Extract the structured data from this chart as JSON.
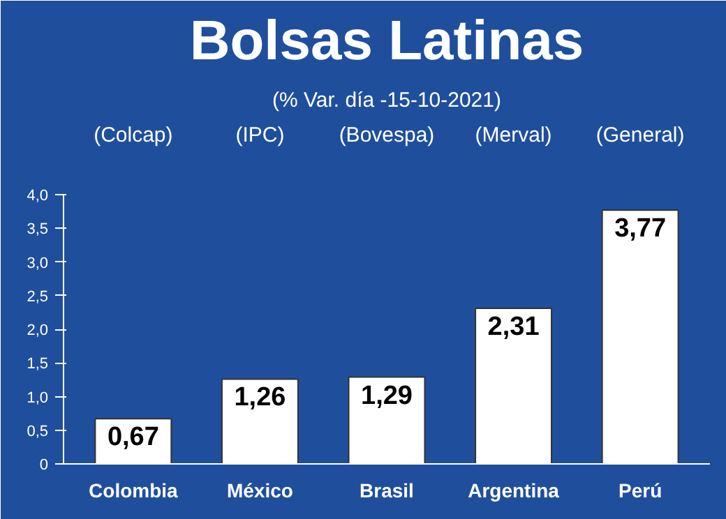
{
  "chart_data": {
    "type": "bar",
    "title": "Bolsas Latinas",
    "subtitle": "(% Var. día -15-10-2021)",
    "categories": [
      "Colombia",
      "México",
      "Brasil",
      "Argentina",
      "Perú"
    ],
    "values": [
      0.67,
      1.26,
      1.29,
      2.31,
      3.77
    ],
    "value_labels": [
      "0,67",
      "1,26",
      "1,29",
      "2,31",
      "3,77"
    ],
    "color": "#ffffff",
    "annotations": [
      "(Colcap)",
      "(IPC)",
      "(Bovespa)",
      "(Merval)",
      "(General)"
    ],
    "ylim": [
      0,
      4.0
    ],
    "yticks": [
      {
        "value": 0,
        "label": "0"
      },
      {
        "value": 0.5,
        "label": "0,5"
      },
      {
        "value": 1.0,
        "label": "1,0"
      },
      {
        "value": 1.5,
        "label": "1,5"
      },
      {
        "value": 2.0,
        "label": "2,0"
      },
      {
        "value": 2.5,
        "label": "2,5"
      },
      {
        "value": 3.0,
        "label": "3,0"
      },
      {
        "value": 3.5,
        "label": "3,5"
      },
      {
        "value": 4.0,
        "label": "4,0"
      }
    ],
    "grid": false
  }
}
